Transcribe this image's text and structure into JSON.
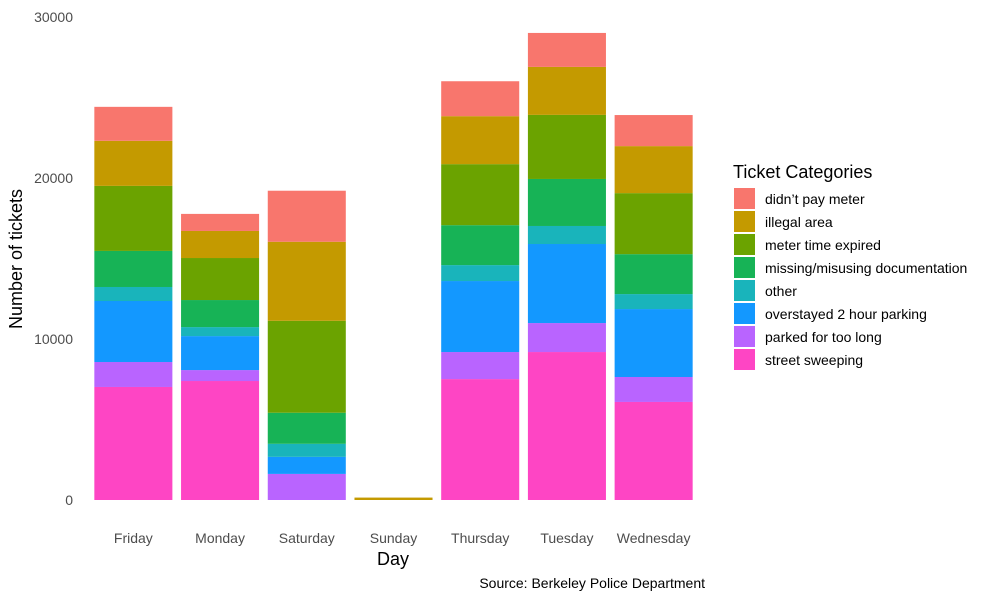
{
  "chart_data": {
    "type": "bar",
    "stacked": true,
    "title": "",
    "xlabel": "Day",
    "ylabel": "Number of tickets",
    "caption": "Source: Berkeley Police Department",
    "ylim": [
      0,
      30000
    ],
    "yticks": [
      0,
      10000,
      20000,
      30000
    ],
    "ytick_labels": [
      "0",
      "10000",
      "20000",
      "30000"
    ],
    "grid": false,
    "legend": {
      "title": "Ticket Categories",
      "position": "right"
    },
    "categories": [
      "Friday",
      "Monday",
      "Saturday",
      "Sunday",
      "Thursday",
      "Tuesday",
      "Wednesday"
    ],
    "series": [
      {
        "name": "didn’t pay meter",
        "color": "#F8766D",
        "values": [
          2110,
          1060,
          3170,
          0,
          2170,
          2110,
          1930
        ]
      },
      {
        "name": "illegal area",
        "color": "#C49A00",
        "values": [
          2800,
          1680,
          4910,
          150,
          2980,
          2980,
          2920
        ]
      },
      {
        "name": "meter time expired",
        "color": "#6BA300",
        "values": [
          4040,
          2610,
          5710,
          0,
          3790,
          3980,
          3790
        ]
      },
      {
        "name": "missing/misusing documentation",
        "color": "#17B356",
        "values": [
          2240,
          1680,
          1930,
          0,
          2480,
          2920,
          2480
        ]
      },
      {
        "name": "other",
        "color": "#19B4BB",
        "values": [
          870,
          560,
          810,
          0,
          990,
          1120,
          930
        ]
      },
      {
        "name": "overstayed 2 hour parking",
        "color": "#1398FF",
        "values": [
          3790,
          2110,
          1060,
          0,
          4410,
          4910,
          4220
        ]
      },
      {
        "name": "parked for too long",
        "color": "#B964FF",
        "values": [
          1550,
          680,
          1620,
          0,
          1680,
          1800,
          1550
        ]
      },
      {
        "name": "street sweeping",
        "color": "#FE45C4",
        "values": [
          7020,
          7390,
          0,
          0,
          7510,
          9190,
          6090
        ]
      }
    ]
  }
}
